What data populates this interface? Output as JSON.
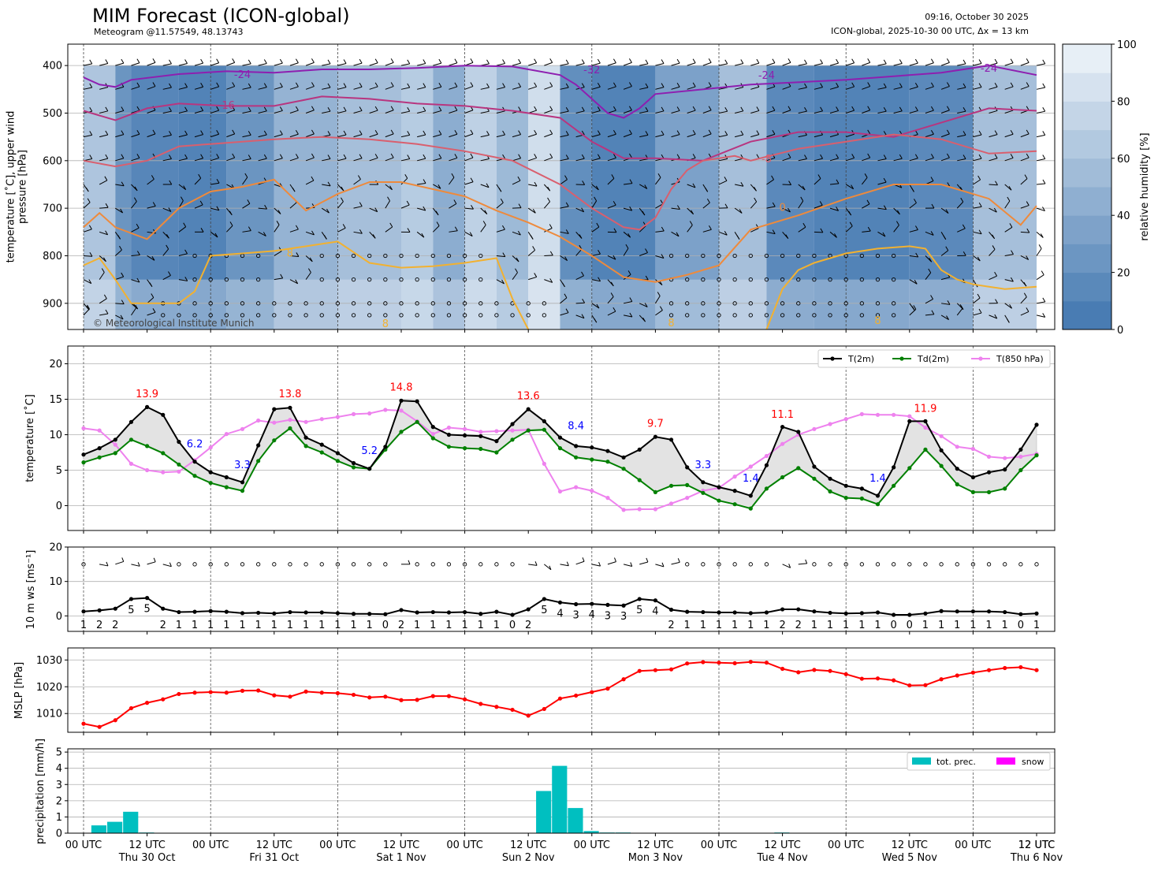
{
  "header": {
    "title": "MIM Forecast (ICON-global)",
    "subtitle": "Meteogram @11.57549, 48.13743",
    "run_time": "09:16, October 30 2025",
    "model_info": "ICON-global, 2025-10-30 00 UTC, Δx = 13 km",
    "copyright": "© Meteorological Institute Munich"
  },
  "chart_data": [
    {
      "type": "heatmap",
      "name": "upper-air",
      "ylabel": "temperature [˚C], upper wind\npressure [hPa]",
      "ylim": [
        955,
        355
      ],
      "yticks": [
        400,
        500,
        600,
        700,
        800,
        900
      ],
      "colorbar": {
        "label": "relative humidity [%]",
        "range": [
          0,
          100
        ],
        "ticks": [
          0,
          20,
          40,
          60,
          80,
          100
        ]
      },
      "contour_labels": [
        "-24",
        "-24",
        "-32",
        "-24",
        "-16",
        "-8",
        "0",
        "8",
        "8",
        "8",
        "8"
      ],
      "isotherms": [
        {
          "label": "-24",
          "color": "#8e1fb0",
          "x": [
            0,
            1,
            2,
            3,
            6,
            9,
            12,
            15,
            18,
            21,
            24,
            27,
            30,
            31,
            32,
            33,
            34,
            35,
            36,
            42,
            48,
            54,
            57,
            60
          ],
          "p": [
            425,
            440,
            445,
            430,
            418,
            412,
            415,
            408,
            408,
            405,
            400,
            402,
            420,
            440,
            470,
            500,
            510,
            490,
            460,
            440,
            430,
            415,
            400,
            420
          ]
        },
        {
          "label": "-16",
          "color": "#b8357f",
          "x": [
            0,
            2,
            4,
            6,
            9,
            12,
            15,
            18,
            21,
            24,
            27,
            30,
            32,
            34,
            36,
            39,
            42,
            45,
            48,
            51,
            54,
            57,
            60
          ],
          "p": [
            495,
            515,
            490,
            480,
            485,
            485,
            465,
            470,
            480,
            485,
            495,
            510,
            560,
            595,
            595,
            600,
            560,
            540,
            540,
            550,
            520,
            490,
            495
          ]
        },
        {
          "label": "-8",
          "color": "#d95f6e",
          "x": [
            0,
            2,
            4,
            6,
            8,
            10,
            12,
            15,
            18,
            21,
            24,
            27,
            30,
            32,
            34,
            35,
            36,
            37,
            38,
            39,
            40,
            41,
            42,
            45,
            48,
            51,
            54,
            57,
            60
          ],
          "p": [
            600,
            612,
            600,
            570,
            565,
            560,
            555,
            550,
            555,
            565,
            580,
            600,
            650,
            700,
            740,
            745,
            720,
            660,
            620,
            600,
            595,
            590,
            600,
            575,
            560,
            545,
            555,
            585,
            580
          ]
        },
        {
          "label": "0",
          "color": "#ee8a3c",
          "x": [
            0,
            1,
            2,
            4,
            6,
            8,
            10,
            12,
            14,
            16,
            18,
            20,
            22,
            24,
            26,
            28,
            30,
            32,
            34,
            36,
            38,
            40,
            42,
            45,
            48,
            51,
            54,
            57,
            59,
            60
          ],
          "p": [
            740,
            710,
            740,
            765,
            700,
            665,
            655,
            640,
            705,
            670,
            645,
            645,
            660,
            675,
            705,
            730,
            760,
            800,
            845,
            855,
            840,
            820,
            745,
            715,
            680,
            650,
            650,
            680,
            735,
            695
          ]
        },
        {
          "label": "8",
          "color": "#f2b130",
          "x": [
            0,
            1,
            2,
            3,
            4,
            6,
            7,
            8,
            10,
            12,
            15,
            16,
            18,
            20,
            22,
            24,
            26,
            27,
            28
          ],
          "p": [
            820,
            805,
            850,
            900,
            900,
            900,
            875,
            800,
            795,
            790,
            775,
            770,
            815,
            825,
            822,
            815,
            805,
            890,
            955
          ]
        },
        {
          "label": "8",
          "color": "#f2b130",
          "x": [
            43,
            44,
            45,
            46,
            48,
            50,
            52,
            53,
            54,
            55,
            56,
            57,
            58,
            60
          ],
          "p": [
            955,
            870,
            830,
            815,
            795,
            785,
            780,
            785,
            830,
            850,
            860,
            865,
            870,
            865
          ]
        }
      ]
    },
    {
      "type": "line",
      "name": "temperature",
      "ylabel": "temperature [˚C]",
      "ylim": [
        -3.5,
        22.5
      ],
      "yticks": [
        0,
        5,
        10,
        15,
        20
      ],
      "legend": "top-right",
      "x_step_hours": 3,
      "series": [
        {
          "name": "T(2m)",
          "color": "#000000",
          "values": [
            7.2,
            8.1,
            9.3,
            11.8,
            13.9,
            12.8,
            9.0,
            6.2,
            4.7,
            4.0,
            3.3,
            8.5,
            13.6,
            13.8,
            9.6,
            8.6,
            7.4,
            6.0,
            5.2,
            8.3,
            14.8,
            14.7,
            11.1,
            10.0,
            9.9,
            9.8,
            9.1,
            11.5,
            13.6,
            11.9,
            9.6,
            8.4,
            8.2,
            7.7,
            6.8,
            7.9,
            9.7,
            9.3,
            5.4,
            3.3,
            2.6,
            2.1,
            1.4,
            5.7,
            11.1,
            10.4,
            5.5,
            3.8,
            2.8,
            2.4,
            1.4,
            5.4,
            11.9,
            11.9,
            7.8,
            5.2,
            4.0,
            4.7,
            5.1,
            7.9,
            11.4
          ]
        },
        {
          "name": "Td(2m)",
          "color": "#008000",
          "values": [
            6.1,
            6.8,
            7.4,
            9.3,
            8.4,
            7.4,
            5.8,
            4.2,
            3.2,
            2.6,
            2.1,
            6.3,
            9.2,
            10.9,
            8.4,
            7.5,
            6.3,
            5.4,
            5.2,
            7.9,
            10.4,
            11.8,
            9.5,
            8.3,
            8.1,
            8.0,
            7.5,
            9.3,
            10.6,
            10.7,
            8.1,
            6.8,
            6.5,
            6.2,
            5.2,
            3.6,
            1.9,
            2.8,
            2.9,
            1.8,
            0.7,
            0.2,
            -0.4,
            2.4,
            4.0,
            5.3,
            3.8,
            2.0,
            1.1,
            1.0,
            0.2,
            2.8,
            5.3,
            7.9,
            5.6,
            3.0,
            1.9,
            1.9,
            2.4,
            5.0,
            7.1
          ]
        },
        {
          "name": "T(850 hPa)",
          "color": "#ee82ee",
          "values": [
            10.9,
            10.6,
            8.6,
            5.9,
            5.0,
            4.7,
            4.8,
            6.4,
            8.2,
            10.1,
            10.8,
            12.0,
            11.7,
            12.1,
            11.8,
            12.2,
            12.5,
            12.9,
            13.0,
            13.5,
            13.4,
            11.9,
            10.1,
            11.0,
            10.8,
            10.4,
            10.5,
            10.6,
            10.7,
            5.9,
            2.0,
            2.6,
            2.1,
            1.1,
            -0.6,
            -0.5,
            -0.5,
            0.3,
            1.1,
            2.1,
            2.5,
            4.1,
            5.5,
            7.0,
            8.7,
            10.0,
            10.8,
            11.5,
            12.2,
            12.9,
            12.8,
            12.8,
            12.6,
            11.0,
            9.8,
            8.3,
            8.0,
            6.9,
            6.7,
            6.9,
            7.3
          ]
        }
      ],
      "annotations": [
        {
          "text": "13.9",
          "x": 4,
          "y": 15.3,
          "color": "#ff0000"
        },
        {
          "text": "6.2",
          "x": 7,
          "y": 8.2,
          "color": "#0000ff"
        },
        {
          "text": "13.8",
          "x": 13,
          "y": 15.3,
          "color": "#ff0000"
        },
        {
          "text": "3.3",
          "x": 10,
          "y": 5.3,
          "color": "#0000ff"
        },
        {
          "text": "5.2",
          "x": 18,
          "y": 7.3,
          "color": "#0000ff"
        },
        {
          "text": "14.8",
          "x": 20,
          "y": 16.2,
          "color": "#ff0000"
        },
        {
          "text": "13.6",
          "x": 28,
          "y": 15.0,
          "color": "#ff0000"
        },
        {
          "text": "8.4",
          "x": 31,
          "y": 10.8,
          "color": "#0000ff"
        },
        {
          "text": "9.7",
          "x": 36,
          "y": 11.1,
          "color": "#ff0000"
        },
        {
          "text": "3.3",
          "x": 39,
          "y": 5.3,
          "color": "#0000ff"
        },
        {
          "text": "1.4",
          "x": 42,
          "y": 3.4,
          "color": "#0000ff"
        },
        {
          "text": "11.1",
          "x": 44,
          "y": 12.4,
          "color": "#ff0000"
        },
        {
          "text": "1.4",
          "x": 50,
          "y": 3.4,
          "color": "#0000ff"
        },
        {
          "text": "11.9",
          "x": 53,
          "y": 13.2,
          "color": "#ff0000"
        }
      ]
    },
    {
      "type": "line",
      "name": "wind",
      "ylabel": "10 m ws [ms⁻¹]",
      "ylim": [
        -4.5,
        20
      ],
      "yticks": [
        0,
        10,
        20
      ],
      "series": [
        {
          "name": "10 m ws",
          "color": "#000000",
          "values": [
            1.3,
            1.6,
            2.1,
            4.9,
            5.2,
            2.1,
            1.1,
            1.2,
            1.4,
            1.2,
            0.8,
            0.9,
            0.7,
            1.1,
            1.0,
            1.0,
            0.8,
            0.6,
            0.6,
            0.5,
            1.7,
            1.0,
            1.1,
            1.0,
            1.1,
            0.6,
            1.2,
            0.3,
            1.9,
            4.9,
            3.9,
            3.4,
            3.5,
            3.2,
            3.0,
            4.9,
            4.5,
            1.8,
            1.2,
            1.1,
            1.0,
            1.0,
            0.8,
            1.0,
            1.9,
            1.9,
            1.3,
            0.9,
            0.7,
            0.8,
            1.0,
            0.3,
            0.3,
            0.7,
            1.4,
            1.3,
            1.3,
            1.3,
            1.1,
            0.5,
            0.7
          ]
        }
      ],
      "labels": [
        "1",
        "2",
        "2",
        "5",
        "5",
        "2",
        "1",
        "1",
        "1",
        "1",
        "1",
        "1",
        "1",
        "1",
        "1",
        "1",
        "1",
        "1",
        "1",
        "0",
        "2",
        "1",
        "1",
        "1",
        "1",
        "1",
        "1",
        "0",
        "2",
        "5",
        "4",
        "3",
        "4",
        "3",
        "3",
        "5",
        "4",
        "2",
        "1",
        "1",
        "1",
        "1",
        "1",
        "1",
        "2",
        "2",
        "1",
        "1",
        "1",
        "1",
        "1",
        "0",
        "0",
        "1",
        "1",
        "1",
        "1",
        "1",
        "1",
        "0",
        "1"
      ]
    },
    {
      "type": "line",
      "name": "mslp",
      "ylabel": "MSLP [hPa]",
      "ylim": [
        1003,
        1034.5
      ],
      "yticks": [
        1010,
        1020,
        1030
      ],
      "series": [
        {
          "name": "MSLP",
          "color": "#ff0000",
          "values": [
            1006.2,
            1005.0,
            1007.5,
            1012.0,
            1014.0,
            1015.3,
            1017.3,
            1017.8,
            1018.0,
            1017.8,
            1018.5,
            1018.6,
            1016.8,
            1016.3,
            1018.2,
            1017.8,
            1017.6,
            1017.0,
            1016.0,
            1016.3,
            1015.0,
            1015.1,
            1016.5,
            1016.5,
            1015.3,
            1013.6,
            1012.5,
            1011.4,
            1009.2,
            1011.7,
            1015.6,
            1016.7,
            1018.0,
            1019.3,
            1022.8,
            1025.9,
            1026.2,
            1026.5,
            1028.7,
            1029.2,
            1029.0,
            1028.8,
            1029.3,
            1029.0,
            1026.7,
            1025.4,
            1026.3,
            1025.9,
            1024.7,
            1023.0,
            1023.1,
            1022.4,
            1020.5,
            1020.6,
            1022.8,
            1024.2,
            1025.3,
            1026.2,
            1027.0,
            1027.3,
            1026.2
          ]
        }
      ]
    },
    {
      "type": "bar",
      "name": "precipitation",
      "ylabel": "precipitation [mm/h]",
      "ylim": [
        0,
        5.2
      ],
      "yticks": [
        0,
        1,
        2,
        3,
        4,
        5
      ],
      "legend": "top-right",
      "series": [
        {
          "name": "tot. prec.",
          "color": "#00bfc0",
          "values": [
            0.0,
            0.48,
            0.7,
            1.32,
            0.04,
            0.0,
            0.0,
            0.0,
            0.0,
            0.0,
            0.0,
            0.0,
            0.0,
            0.0,
            0.0,
            0.0,
            0.0,
            0.0,
            0.0,
            0.0,
            0.0,
            0.0,
            0.0,
            0.0,
            0.0,
            0.0,
            0.0,
            0.0,
            0.0,
            2.6,
            4.15,
            1.55,
            0.13,
            0.04,
            0.04,
            0.0,
            0.0,
            0.0,
            0.0,
            0.0,
            0.0,
            0.0,
            0.0,
            0.0,
            0.04,
            0.0,
            0.0,
            0.0,
            0.0,
            0.0,
            0.0,
            0.0,
            0.0,
            0.0,
            0.0,
            0.0,
            0.0,
            0.0,
            0.0,
            0.0,
            0.0
          ]
        },
        {
          "name": "snow",
          "color": "#ff00ff",
          "values": [
            0,
            0,
            0,
            0,
            0,
            0,
            0,
            0,
            0,
            0,
            0,
            0,
            0,
            0,
            0,
            0,
            0,
            0,
            0,
            0,
            0,
            0,
            0,
            0,
            0,
            0,
            0,
            0,
            0,
            0,
            0,
            0,
            0,
            0,
            0,
            0,
            0,
            0,
            0,
            0,
            0,
            0,
            0,
            0,
            0,
            0,
            0,
            0,
            0,
            0,
            0,
            0,
            0,
            0,
            0,
            0,
            0,
            0,
            0,
            0,
            0
          ]
        }
      ],
      "x_tick_labels": [
        "00 UTC",
        "12 UTC\nThu 30 Oct",
        "00 UTC",
        "12 UTC\nFri 31 Oct",
        "00 UTC",
        "12 UTC\nSat 1 Nov",
        "00 UTC",
        "12 UTC\nSun 2 Nov",
        "00 UTC",
        "12 UTC\nMon 3 Nov",
        "00 UTC",
        "12 UTC\nTue 4 Nov",
        "00 UTC",
        "12 UTC\nWed 5 Nov",
        "00 UTC",
        "12 UTC\nThu 6 Nov",
        "12 UTC"
      ]
    }
  ]
}
